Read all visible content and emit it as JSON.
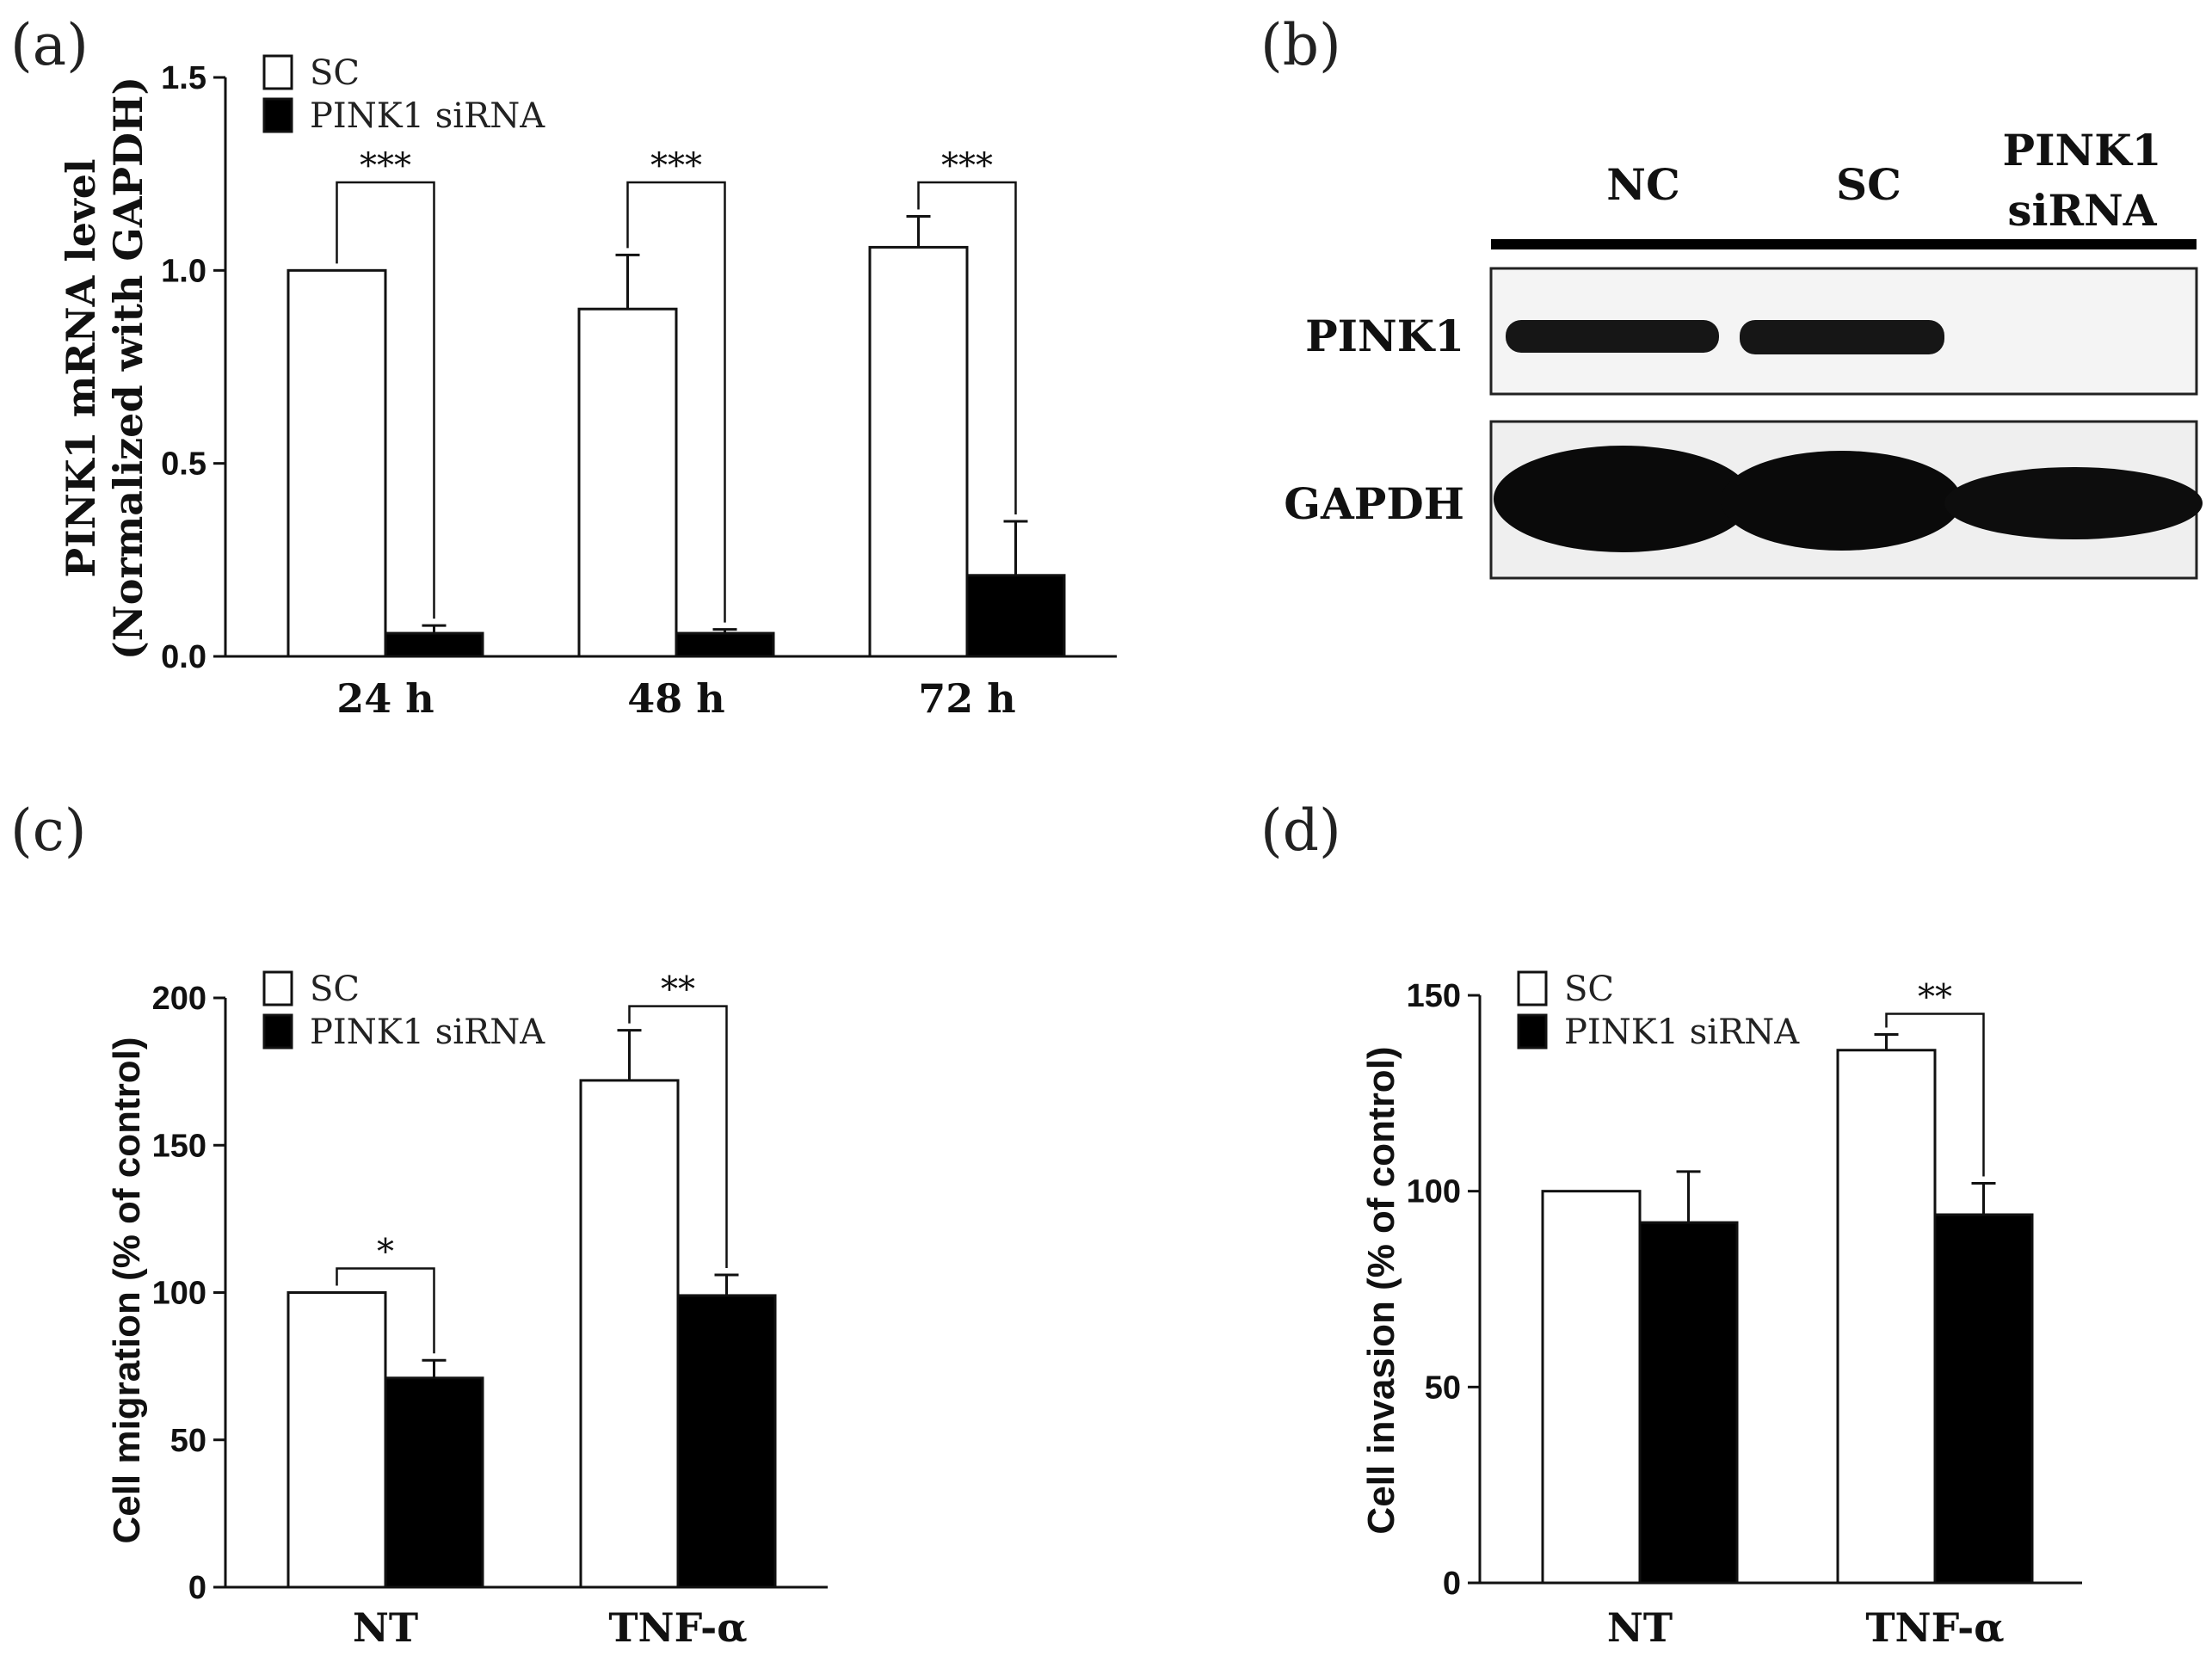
{
  "panels": {
    "a": "(a)",
    "b": "(b)",
    "c": "(c)",
    "d": "(d)"
  },
  "colors": {
    "sc": "#ffffff",
    "sirna": "#000000",
    "stroke": "#111111"
  },
  "legend": {
    "sc": "SC",
    "sirna": "PINK1 siRNA"
  },
  "chart_data": [
    {
      "id": "a",
      "type": "bar",
      "categories": [
        "24 h",
        "48 h",
        "72 h"
      ],
      "ylabel_line1": "PINK1 mRNA level",
      "ylabel_line2": "(Normalized with GAPDH)",
      "ylim": [
        0,
        1.5
      ],
      "yticks": [
        "0.0",
        "0.5",
        "1.0",
        "1.5"
      ],
      "series": [
        {
          "name": "SC",
          "values": [
            1.0,
            0.9,
            1.06
          ],
          "errors": [
            0,
            0.14,
            0.08
          ]
        },
        {
          "name": "PINK1 siRNA",
          "values": [
            0.06,
            0.06,
            0.21
          ],
          "errors": [
            0.02,
            0.01,
            0.14
          ]
        }
      ],
      "significance": [
        "***",
        "***",
        "***"
      ],
      "legend_placement": "top-left"
    },
    {
      "id": "c",
      "type": "bar",
      "categories": [
        "NT",
        "TNF-α"
      ],
      "ylabel": "Cell migration (% of control)",
      "ylim": [
        0,
        200
      ],
      "yticks": [
        "0",
        "50",
        "100",
        "150",
        "200"
      ],
      "series": [
        {
          "name": "SC",
          "values": [
            100,
            172
          ],
          "errors": [
            0,
            17
          ]
        },
        {
          "name": "PINK1 siRNA",
          "values": [
            71,
            99
          ],
          "errors": [
            6,
            7
          ]
        }
      ],
      "significance": [
        "*",
        "**"
      ],
      "legend_placement": "top-left"
    },
    {
      "id": "d",
      "type": "bar",
      "categories": [
        "NT",
        "TNF-α"
      ],
      "ylabel": "Cell invasion (% of control)",
      "ylim": [
        0,
        150
      ],
      "yticks": [
        "0",
        "50",
        "100",
        "150"
      ],
      "series": [
        {
          "name": "SC",
          "values": [
            100,
            136
          ],
          "errors": [
            0,
            4
          ]
        },
        {
          "name": "PINK1 siRNA",
          "values": [
            92,
            94
          ],
          "errors": [
            13,
            8
          ]
        }
      ],
      "significance": [
        "",
        "**"
      ],
      "legend_placement": "top-left"
    }
  ],
  "blot": {
    "lanes": [
      "NC",
      "SC"
    ],
    "lane3_line1": "PINK1",
    "lane3_line2": "siRNA",
    "rows": [
      "PINK1",
      "GAPDH"
    ]
  }
}
